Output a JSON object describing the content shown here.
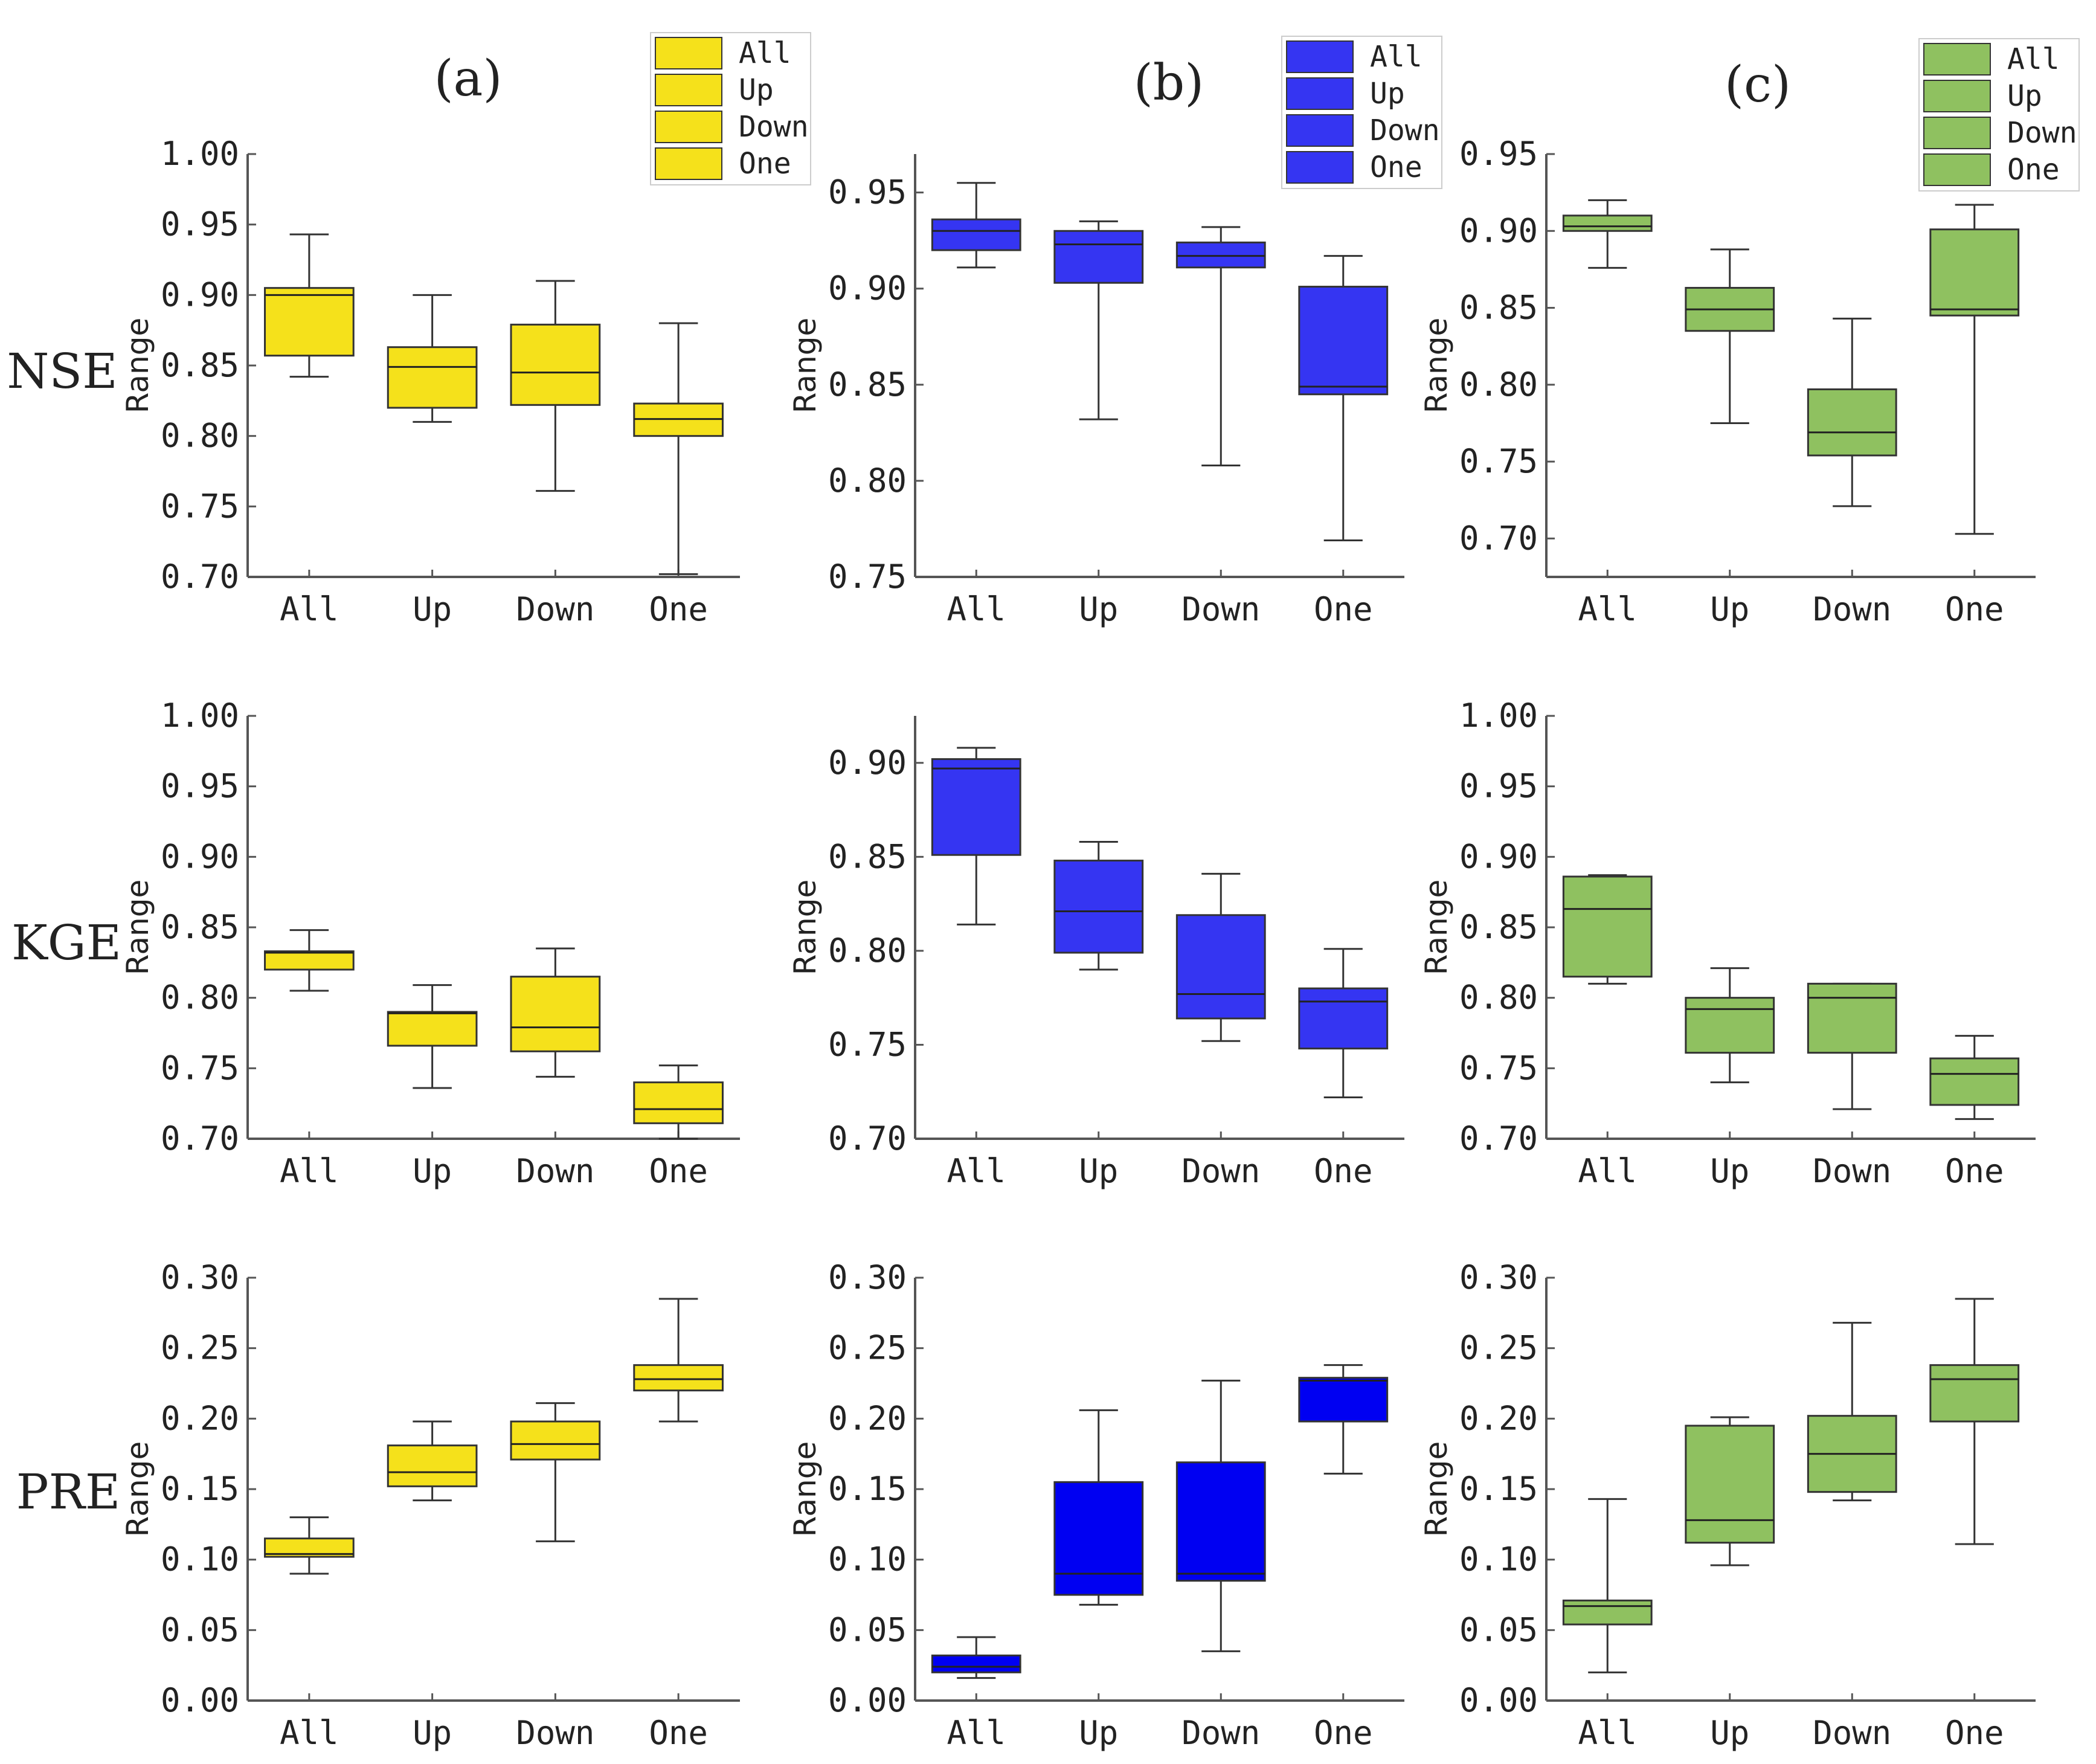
{
  "figure": {
    "column_titles": [
      "(a)",
      "(b)",
      "(c)"
    ],
    "row_labels": [
      "NSE",
      "KGE",
      "PRE"
    ],
    "legend_entries": [
      "All",
      "Up",
      "Down",
      "One"
    ],
    "colors": {
      "a": "#f5e11b",
      "b": "#3535f2",
      "c": "#8fc160",
      "axis": "#555555"
    }
  },
  "chart_data": [
    {
      "type": "box",
      "id": "a-nse",
      "column": "a",
      "row": "NSE",
      "color": "#f5e11b",
      "ylabel": "Range",
      "categories": [
        "All",
        "Up",
        "Down",
        "One"
      ],
      "ylim": [
        0.7,
        1.0
      ],
      "yticks": [
        0.7,
        0.75,
        0.8,
        0.85,
        0.9,
        0.95,
        1.0
      ],
      "ytick_labels": [
        "0.70",
        "0.75",
        "0.80",
        "0.85",
        "0.90",
        "0.95",
        "1.00"
      ],
      "boxes": [
        {
          "min": 0.842,
          "q1": 0.857,
          "median": 0.9,
          "q3": 0.905,
          "max": 0.943
        },
        {
          "min": 0.81,
          "q1": 0.82,
          "median": 0.849,
          "q3": 0.863,
          "max": 0.9
        },
        {
          "min": 0.761,
          "q1": 0.822,
          "median": 0.845,
          "q3": 0.879,
          "max": 0.91
        },
        {
          "min": 0.702,
          "q1": 0.8,
          "median": 0.812,
          "q3": 0.823,
          "max": 0.88
        }
      ]
    },
    {
      "type": "box",
      "id": "b-nse",
      "column": "b",
      "row": "NSE",
      "color": "#3535f2",
      "ylabel": "Range",
      "categories": [
        "All",
        "Up",
        "Down",
        "One"
      ],
      "ylim": [
        0.75,
        0.97
      ],
      "yticks": [
        0.75,
        0.8,
        0.85,
        0.9,
        0.95
      ],
      "ytick_labels": [
        "0.75",
        "0.80",
        "0.85",
        "0.90",
        "0.95"
      ],
      "boxes": [
        {
          "min": 0.911,
          "q1": 0.92,
          "median": 0.93,
          "q3": 0.936,
          "max": 0.955
        },
        {
          "min": 0.832,
          "q1": 0.903,
          "median": 0.923,
          "q3": 0.93,
          "max": 0.935
        },
        {
          "min": 0.808,
          "q1": 0.911,
          "median": 0.917,
          "q3": 0.924,
          "max": 0.932
        },
        {
          "min": 0.769,
          "q1": 0.845,
          "median": 0.849,
          "q3": 0.901,
          "max": 0.917
        }
      ]
    },
    {
      "type": "box",
      "id": "c-nse",
      "column": "c",
      "row": "NSE",
      "color": "#8fc160",
      "ylabel": "Range",
      "categories": [
        "All",
        "Up",
        "Down",
        "One"
      ],
      "ylim": [
        0.675,
        0.95
      ],
      "yticks": [
        0.7,
        0.75,
        0.8,
        0.85,
        0.9,
        0.95
      ],
      "ytick_labels": [
        "0.70",
        "0.75",
        "0.80",
        "0.85",
        "0.90",
        "0.95"
      ],
      "boxes": [
        {
          "min": 0.876,
          "q1": 0.9,
          "median": 0.903,
          "q3": 0.91,
          "max": 0.92
        },
        {
          "min": 0.775,
          "q1": 0.835,
          "median": 0.849,
          "q3": 0.863,
          "max": 0.888
        },
        {
          "min": 0.721,
          "q1": 0.754,
          "median": 0.769,
          "q3": 0.797,
          "max": 0.843
        },
        {
          "min": 0.703,
          "q1": 0.845,
          "median": 0.849,
          "q3": 0.901,
          "max": 0.917
        }
      ]
    },
    {
      "type": "box",
      "id": "a-kge",
      "column": "a",
      "row": "KGE",
      "color": "#f5e11b",
      "ylabel": "Range",
      "categories": [
        "All",
        "Up",
        "Down",
        "One"
      ],
      "ylim": [
        0.7,
        1.0
      ],
      "yticks": [
        0.7,
        0.75,
        0.8,
        0.85,
        0.9,
        0.95,
        1.0
      ],
      "ytick_labels": [
        "0.70",
        "0.75",
        "0.80",
        "0.85",
        "0.90",
        "0.95",
        "1.00"
      ],
      "boxes": [
        {
          "min": 0.805,
          "q1": 0.82,
          "median": 0.832,
          "q3": 0.833,
          "max": 0.848
        },
        {
          "min": 0.736,
          "q1": 0.766,
          "median": 0.789,
          "q3": 0.79,
          "max": 0.809
        },
        {
          "min": 0.744,
          "q1": 0.762,
          "median": 0.779,
          "q3": 0.815,
          "max": 0.835
        },
        {
          "min": 0.7,
          "q1": 0.711,
          "median": 0.721,
          "q3": 0.74,
          "max": 0.752
        }
      ]
    },
    {
      "type": "box",
      "id": "b-kge",
      "column": "b",
      "row": "KGE",
      "color": "#3535f2",
      "ylabel": "Range",
      "categories": [
        "All",
        "Up",
        "Down",
        "One"
      ],
      "ylim": [
        0.7,
        0.925
      ],
      "yticks": [
        0.7,
        0.75,
        0.8,
        0.85,
        0.9
      ],
      "ytick_labels": [
        "0.70",
        "0.75",
        "0.80",
        "0.85",
        "0.90"
      ],
      "boxes": [
        {
          "min": 0.814,
          "q1": 0.851,
          "median": 0.897,
          "q3": 0.902,
          "max": 0.908
        },
        {
          "min": 0.79,
          "q1": 0.799,
          "median": 0.821,
          "q3": 0.848,
          "max": 0.858
        },
        {
          "min": 0.752,
          "q1": 0.764,
          "median": 0.777,
          "q3": 0.819,
          "max": 0.841
        },
        {
          "min": 0.722,
          "q1": 0.748,
          "median": 0.773,
          "q3": 0.78,
          "max": 0.801
        }
      ]
    },
    {
      "type": "box",
      "id": "c-kge",
      "column": "c",
      "row": "KGE",
      "color": "#8fc160",
      "ylabel": "Range",
      "categories": [
        "All",
        "Up",
        "Down",
        "One"
      ],
      "ylim": [
        0.7,
        1.0
      ],
      "yticks": [
        0.7,
        0.75,
        0.8,
        0.85,
        0.9,
        0.95,
        1.0
      ],
      "ytick_labels": [
        "0.70",
        "0.75",
        "0.80",
        "0.85",
        "0.90",
        "0.95",
        "1.00"
      ],
      "boxes": [
        {
          "min": 0.81,
          "q1": 0.815,
          "median": 0.863,
          "q3": 0.886,
          "max": 0.887
        },
        {
          "min": 0.74,
          "q1": 0.761,
          "median": 0.792,
          "q3": 0.8,
          "max": 0.821
        },
        {
          "min": 0.721,
          "q1": 0.761,
          "median": 0.8,
          "q3": 0.81,
          "max": 0.81
        },
        {
          "min": 0.714,
          "q1": 0.724,
          "median": 0.746,
          "q3": 0.757,
          "max": 0.773
        }
      ]
    },
    {
      "type": "box",
      "id": "a-pre",
      "column": "a",
      "row": "PRE",
      "color": "#f5e11b",
      "ylabel": "Range",
      "categories": [
        "All",
        "Up",
        "Down",
        "One"
      ],
      "ylim": [
        0.0,
        0.3
      ],
      "yticks": [
        0.0,
        0.05,
        0.1,
        0.15,
        0.2,
        0.25,
        0.3
      ],
      "ytick_labels": [
        "0.00",
        "0.05",
        "0.10",
        "0.15",
        "0.20",
        "0.25",
        "0.30"
      ],
      "boxes": [
        {
          "min": 0.09,
          "q1": 0.102,
          "median": 0.104,
          "q3": 0.115,
          "max": 0.13
        },
        {
          "min": 0.142,
          "q1": 0.152,
          "median": 0.162,
          "q3": 0.181,
          "max": 0.198
        },
        {
          "min": 0.113,
          "q1": 0.171,
          "median": 0.182,
          "q3": 0.198,
          "max": 0.211
        },
        {
          "min": 0.198,
          "q1": 0.22,
          "median": 0.228,
          "q3": 0.238,
          "max": 0.285
        }
      ]
    },
    {
      "type": "box",
      "id": "b-pre",
      "column": "b",
      "row": "PRE",
      "color": "#0000f2",
      "ylabel": "Range",
      "categories": [
        "All",
        "Up",
        "Down",
        "One"
      ],
      "ylim": [
        0.0,
        0.3
      ],
      "yticks": [
        0.0,
        0.05,
        0.1,
        0.15,
        0.2,
        0.25,
        0.3
      ],
      "ytick_labels": [
        "0.00",
        "0.05",
        "0.10",
        "0.15",
        "0.20",
        "0.25",
        "0.30"
      ],
      "boxes": [
        {
          "min": 0.016,
          "q1": 0.02,
          "median": 0.024,
          "q3": 0.032,
          "max": 0.045
        },
        {
          "min": 0.068,
          "q1": 0.075,
          "median": 0.09,
          "q3": 0.155,
          "max": 0.206
        },
        {
          "min": 0.035,
          "q1": 0.085,
          "median": 0.09,
          "q3": 0.169,
          "max": 0.227
        },
        {
          "min": 0.161,
          "q1": 0.198,
          "median": 0.227,
          "q3": 0.229,
          "max": 0.238
        }
      ]
    },
    {
      "type": "box",
      "id": "c-pre",
      "column": "c",
      "row": "PRE",
      "color": "#8fc160",
      "ylabel": "Range",
      "categories": [
        "All",
        "Up",
        "Down",
        "One"
      ],
      "ylim": [
        0.0,
        0.3
      ],
      "yticks": [
        0.0,
        0.05,
        0.1,
        0.15,
        0.2,
        0.25,
        0.3
      ],
      "ytick_labels": [
        "0.00",
        "0.05",
        "0.10",
        "0.15",
        "0.20",
        "0.25",
        "0.30"
      ],
      "boxes": [
        {
          "min": 0.02,
          "q1": 0.054,
          "median": 0.067,
          "q3": 0.071,
          "max": 0.143
        },
        {
          "min": 0.096,
          "q1": 0.112,
          "median": 0.128,
          "q3": 0.195,
          "max": 0.201
        },
        {
          "min": 0.142,
          "q1": 0.148,
          "median": 0.175,
          "q3": 0.202,
          "max": 0.268
        },
        {
          "min": 0.111,
          "q1": 0.198,
          "median": 0.228,
          "q3": 0.238,
          "max": 0.285
        }
      ]
    }
  ]
}
